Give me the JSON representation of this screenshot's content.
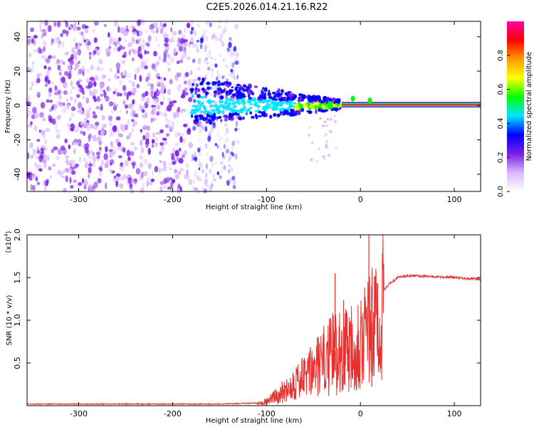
{
  "title": "C2E5.2026.014.21.16.R22",
  "chart_data": [
    {
      "type": "heatmap",
      "name": "spectrogram",
      "xlabel": "Height of straight line (km)",
      "ylabel": "Frequency (Hz)",
      "xlim": [
        -355,
        128
      ],
      "ylim": [
        -50,
        49
      ],
      "xticks": [
        -300,
        -200,
        -100,
        0,
        100
      ],
      "yticks": [
        -40,
        -20,
        0,
        20,
        40
      ],
      "colorbar": {
        "label": "Normalized spectral amplitude",
        "range": [
          0,
          1
        ],
        "ticks": [
          0.0,
          0.2,
          0.4,
          0.6,
          0.8
        ],
        "colors": [
          "#ffffff",
          "#d9b8ff",
          "#7a1ee8",
          "#0000ff",
          "#00e5ff",
          "#00ff00",
          "#ffff00",
          "#ff9900",
          "#ff0000",
          "#ff00aa"
        ]
      },
      "carrier": {
        "frequency_hz": 0.5,
        "from_km": -20,
        "to_km": 128,
        "amplitude": 0.9
      },
      "regions": [
        {
          "from_km": -355,
          "to_km": -180,
          "description": "noise",
          "amplitude": 0.2
        },
        {
          "from_km": -180,
          "to_km": -130,
          "description": "transition",
          "amplitude": 0.35
        },
        {
          "from_km": -130,
          "to_km": -20,
          "description": "signal acquisition",
          "amplitude": 0.55
        }
      ]
    },
    {
      "type": "line",
      "name": "snr",
      "xlabel": "Height of straight line (km)",
      "ylabel": "SNR (10 * v/v)",
      "scale_label": "(x10",
      "scale_exp": "4",
      "scale_close": ")",
      "xlim": [
        -355,
        128
      ],
      "ylim": [
        0,
        2.0
      ],
      "xticks": [
        -300,
        -200,
        -100,
        0,
        100
      ],
      "yticks": [
        0.5,
        1.0,
        1.5,
        2.0
      ],
      "color": "#e8302e",
      "series": [
        {
          "name": "SNR",
          "x": [
            -355,
            -200,
            -150,
            -110,
            -100,
            -90,
            -80,
            -70,
            -60,
            -50,
            -40,
            -30,
            -25,
            -20,
            -10,
            -5,
            0,
            5,
            10,
            15,
            20,
            25,
            30,
            40,
            50,
            60,
            80,
            100,
            128
          ],
          "y": [
            0.02,
            0.02,
            0.02,
            0.03,
            0.06,
            0.12,
            0.2,
            0.3,
            0.35,
            0.45,
            0.55,
            0.65,
            0.7,
            0.75,
            0.8,
            0.82,
            0.85,
            0.9,
            0.95,
            1.0,
            1.2,
            1.35,
            1.42,
            1.5,
            1.52,
            1.52,
            1.51,
            1.5,
            1.48
          ]
        }
      ],
      "spikes": [
        {
          "x": -27,
          "y": 1.55
        },
        {
          "x": 9,
          "y": 2.0
        },
        {
          "x": 12,
          "y": 0.22
        }
      ]
    }
  ]
}
